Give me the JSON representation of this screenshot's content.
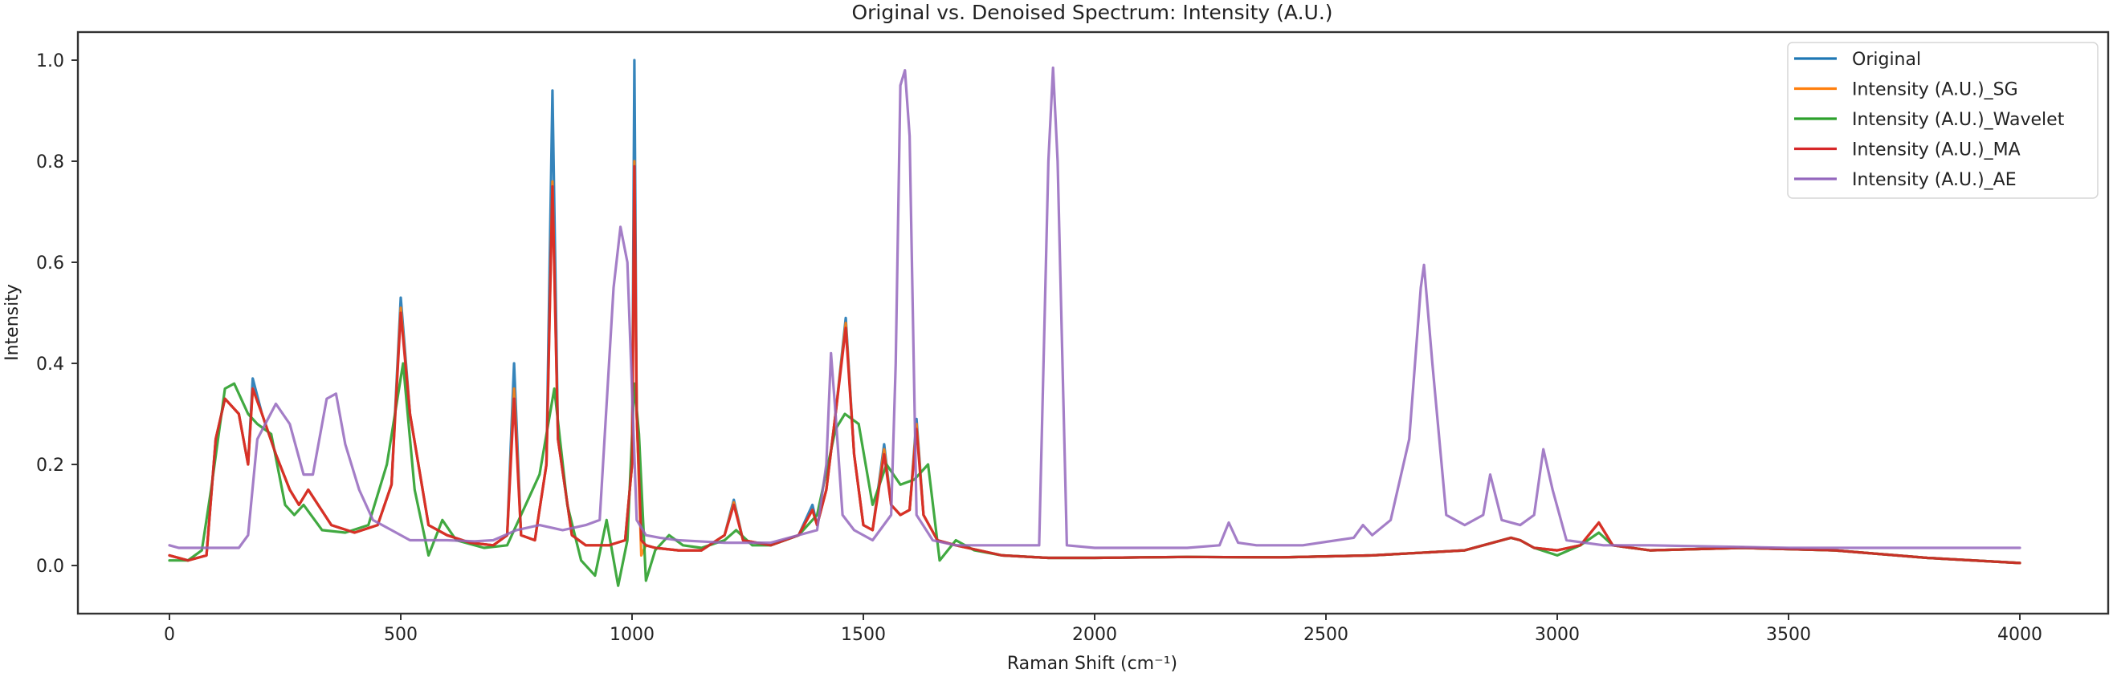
{
  "chart_data": {
    "type": "line",
    "title": "Original vs. Denoised Spectrum: Intensity (A.U.)",
    "xlabel": "Raman Shift (cm⁻¹)",
    "ylabel": "Intensity",
    "xlim": [
      -100,
      4200
    ],
    "ylim": [
      -0.1,
      1.05
    ],
    "xticks": [
      0,
      500,
      1000,
      1500,
      2000,
      2500,
      3000,
      3500,
      4000
    ],
    "xtick_labels": [
      "0",
      "500",
      "1000",
      "1500",
      "2000",
      "2500",
      "3000",
      "3500",
      "4000"
    ],
    "yticks": [
      0.0,
      0.2,
      0.4,
      0.6,
      0.8,
      1.0
    ],
    "ytick_labels": [
      "0.0",
      "0.2",
      "0.4",
      "0.6",
      "0.8",
      "1.0"
    ],
    "grid": false,
    "legend_position": "upper right",
    "series": [
      {
        "name": "Original",
        "color": "#1f77b4",
        "x": [
          0,
          40,
          80,
          100,
          120,
          150,
          170,
          180,
          200,
          230,
          260,
          280,
          300,
          350,
          400,
          450,
          480,
          500,
          520,
          560,
          600,
          650,
          700,
          730,
          745,
          760,
          790,
          815,
          828,
          840,
          870,
          900,
          950,
          985,
          1000,
          1005,
          1010,
          1020,
          1030,
          1050,
          1100,
          1150,
          1200,
          1220,
          1240,
          1300,
          1360,
          1390,
          1400,
          1420,
          1440,
          1462,
          1480,
          1500,
          1520,
          1545,
          1560,
          1580,
          1600,
          1615,
          1630,
          1660,
          1700,
          1800,
          1900,
          2000,
          2200,
          2400,
          2600,
          2800,
          2900,
          2920,
          2950,
          3000,
          3050,
          3090,
          3120,
          3200,
          3400,
          3600,
          3800,
          4000
        ],
        "y": [
          0.02,
          0.01,
          0.02,
          0.25,
          0.33,
          0.3,
          0.2,
          0.37,
          0.3,
          0.22,
          0.15,
          0.12,
          0.15,
          0.08,
          0.065,
          0.08,
          0.16,
          0.53,
          0.3,
          0.08,
          0.06,
          0.045,
          0.04,
          0.06,
          0.4,
          0.06,
          0.05,
          0.2,
          0.94,
          0.25,
          0.06,
          0.04,
          0.04,
          0.05,
          0.2,
          1.0,
          0.3,
          0.05,
          0.04,
          0.035,
          0.03,
          0.03,
          0.06,
          0.13,
          0.05,
          0.04,
          0.06,
          0.12,
          0.08,
          0.15,
          0.3,
          0.49,
          0.22,
          0.08,
          0.07,
          0.24,
          0.12,
          0.1,
          0.11,
          0.29,
          0.1,
          0.05,
          0.04,
          0.02,
          0.015,
          0.015,
          0.017,
          0.016,
          0.02,
          0.03,
          0.055,
          0.05,
          0.035,
          0.03,
          0.04,
          0.085,
          0.04,
          0.03,
          0.035,
          0.03,
          0.015,
          0.005
        ]
      },
      {
        "name": "Intensity (A.U.)_SG",
        "color": "#ff7f0e",
        "x": [
          0,
          40,
          80,
          100,
          120,
          150,
          170,
          180,
          200,
          230,
          260,
          280,
          300,
          350,
          400,
          450,
          480,
          500,
          520,
          560,
          600,
          650,
          700,
          730,
          745,
          760,
          790,
          815,
          828,
          840,
          870,
          900,
          950,
          985,
          1000,
          1005,
          1010,
          1020,
          1030,
          1050,
          1100,
          1150,
          1200,
          1220,
          1240,
          1300,
          1360,
          1390,
          1400,
          1420,
          1440,
          1462,
          1480,
          1500,
          1520,
          1545,
          1560,
          1580,
          1600,
          1615,
          1630,
          1660,
          1700,
          1800,
          1900,
          2000,
          2200,
          2400,
          2600,
          2800,
          2900,
          2920,
          2950,
          3000,
          3050,
          3090,
          3120,
          3200,
          3400,
          3600,
          3800,
          4000
        ],
        "y": [
          0.02,
          0.01,
          0.02,
          0.25,
          0.33,
          0.3,
          0.2,
          0.35,
          0.3,
          0.22,
          0.15,
          0.12,
          0.15,
          0.08,
          0.065,
          0.08,
          0.16,
          0.51,
          0.3,
          0.08,
          0.06,
          0.045,
          0.04,
          0.06,
          0.35,
          0.06,
          0.05,
          0.2,
          0.76,
          0.25,
          0.06,
          0.04,
          0.04,
          0.05,
          0.2,
          0.8,
          0.3,
          0.02,
          0.04,
          0.035,
          0.03,
          0.03,
          0.06,
          0.125,
          0.05,
          0.04,
          0.06,
          0.11,
          0.08,
          0.15,
          0.3,
          0.48,
          0.22,
          0.08,
          0.07,
          0.23,
          0.12,
          0.1,
          0.11,
          0.28,
          0.1,
          0.05,
          0.04,
          0.02,
          0.015,
          0.015,
          0.017,
          0.016,
          0.02,
          0.03,
          0.055,
          0.05,
          0.035,
          0.03,
          0.04,
          0.085,
          0.04,
          0.03,
          0.035,
          0.03,
          0.015,
          0.005
        ]
      },
      {
        "name": "Intensity (A.U.)_Wavelet",
        "color": "#2ca02c",
        "x": [
          0,
          40,
          70,
          90,
          120,
          140,
          170,
          190,
          220,
          250,
          270,
          290,
          330,
          380,
          430,
          470,
          505,
          530,
          560,
          590,
          620,
          680,
          730,
          760,
          800,
          832,
          860,
          890,
          920,
          945,
          970,
          990,
          1005,
          1015,
          1030,
          1050,
          1080,
          1110,
          1150,
          1200,
          1225,
          1260,
          1300,
          1360,
          1400,
          1440,
          1460,
          1490,
          1520,
          1550,
          1580,
          1610,
          1640,
          1665,
          1700,
          1740,
          1800,
          1900,
          2000,
          2200,
          2400,
          2600,
          2800,
          2900,
          2920,
          2950,
          3000,
          3050,
          3090,
          3120,
          3200,
          3400,
          3600,
          3800,
          4000
        ],
        "y": [
          0.01,
          0.01,
          0.03,
          0.15,
          0.35,
          0.36,
          0.3,
          0.28,
          0.26,
          0.12,
          0.1,
          0.12,
          0.07,
          0.065,
          0.08,
          0.2,
          0.4,
          0.15,
          0.02,
          0.09,
          0.05,
          0.035,
          0.04,
          0.1,
          0.18,
          0.35,
          0.12,
          0.01,
          -0.02,
          0.09,
          -0.04,
          0.05,
          0.36,
          0.26,
          -0.03,
          0.03,
          0.06,
          0.04,
          0.035,
          0.05,
          0.07,
          0.04,
          0.04,
          0.06,
          0.1,
          0.27,
          0.3,
          0.28,
          0.12,
          0.2,
          0.16,
          0.17,
          0.2,
          0.01,
          0.05,
          0.03,
          0.02,
          0.015,
          0.015,
          0.017,
          0.016,
          0.02,
          0.03,
          0.055,
          0.05,
          0.035,
          0.02,
          0.04,
          0.065,
          0.04,
          0.03,
          0.035,
          0.03,
          0.015,
          0.005
        ]
      },
      {
        "name": "Intensity (A.U.)_MA",
        "color": "#d62728",
        "x": [
          0,
          40,
          80,
          100,
          120,
          150,
          170,
          180,
          200,
          230,
          260,
          280,
          300,
          350,
          400,
          450,
          480,
          500,
          520,
          560,
          600,
          650,
          700,
          730,
          745,
          760,
          790,
          815,
          828,
          840,
          870,
          900,
          950,
          985,
          1000,
          1005,
          1010,
          1020,
          1030,
          1050,
          1100,
          1150,
          1200,
          1220,
          1240,
          1300,
          1360,
          1390,
          1400,
          1420,
          1440,
          1462,
          1480,
          1500,
          1520,
          1545,
          1560,
          1580,
          1600,
          1615,
          1630,
          1660,
          1700,
          1800,
          1900,
          2000,
          2200,
          2400,
          2600,
          2800,
          2900,
          2920,
          2950,
          3000,
          3050,
          3090,
          3120,
          3200,
          3400,
          3600,
          3800,
          4000
        ],
        "y": [
          0.02,
          0.01,
          0.02,
          0.25,
          0.33,
          0.3,
          0.2,
          0.35,
          0.3,
          0.22,
          0.15,
          0.12,
          0.15,
          0.08,
          0.065,
          0.08,
          0.16,
          0.5,
          0.3,
          0.08,
          0.06,
          0.045,
          0.04,
          0.06,
          0.33,
          0.06,
          0.05,
          0.2,
          0.75,
          0.25,
          0.06,
          0.04,
          0.04,
          0.05,
          0.2,
          0.79,
          0.3,
          0.05,
          0.04,
          0.035,
          0.03,
          0.03,
          0.06,
          0.12,
          0.05,
          0.04,
          0.06,
          0.11,
          0.08,
          0.15,
          0.3,
          0.47,
          0.22,
          0.08,
          0.07,
          0.22,
          0.12,
          0.1,
          0.11,
          0.27,
          0.1,
          0.05,
          0.04,
          0.02,
          0.015,
          0.015,
          0.017,
          0.016,
          0.02,
          0.03,
          0.055,
          0.05,
          0.035,
          0.03,
          0.04,
          0.085,
          0.04,
          0.03,
          0.035,
          0.03,
          0.015,
          0.005
        ]
      },
      {
        "name": "Intensity (A.U.)_AE",
        "color": "#9467bd",
        "x": [
          0,
          20,
          150,
          170,
          190,
          230,
          260,
          290,
          310,
          340,
          360,
          380,
          410,
          440,
          480,
          520,
          560,
          600,
          660,
          700,
          750,
          800,
          850,
          900,
          930,
          960,
          975,
          990,
          1010,
          1030,
          1060,
          1100,
          1200,
          1300,
          1400,
          1420,
          1430,
          1440,
          1455,
          1480,
          1520,
          1560,
          1570,
          1580,
          1590,
          1600,
          1615,
          1650,
          1700,
          1800,
          1880,
          1900,
          1910,
          1920,
          1940,
          2000,
          2100,
          2200,
          2270,
          2290,
          2310,
          2350,
          2450,
          2560,
          2580,
          2600,
          2640,
          2680,
          2705,
          2712,
          2730,
          2760,
          2800,
          2840,
          2855,
          2880,
          2920,
          2950,
          2970,
          2990,
          3020,
          3100,
          3200,
          3500,
          3800,
          4000
        ],
        "y": [
          0.04,
          0.035,
          0.035,
          0.06,
          0.25,
          0.32,
          0.28,
          0.18,
          0.18,
          0.33,
          0.34,
          0.24,
          0.15,
          0.09,
          0.07,
          0.05,
          0.05,
          0.05,
          0.048,
          0.05,
          0.07,
          0.08,
          0.07,
          0.08,
          0.09,
          0.55,
          0.67,
          0.6,
          0.09,
          0.06,
          0.055,
          0.05,
          0.045,
          0.045,
          0.07,
          0.2,
          0.42,
          0.3,
          0.1,
          0.07,
          0.05,
          0.1,
          0.4,
          0.95,
          0.98,
          0.85,
          0.1,
          0.05,
          0.04,
          0.04,
          0.04,
          0.8,
          0.985,
          0.8,
          0.04,
          0.035,
          0.035,
          0.035,
          0.04,
          0.085,
          0.045,
          0.04,
          0.04,
          0.055,
          0.08,
          0.06,
          0.09,
          0.25,
          0.55,
          0.595,
          0.4,
          0.1,
          0.08,
          0.1,
          0.18,
          0.09,
          0.08,
          0.1,
          0.23,
          0.15,
          0.05,
          0.04,
          0.04,
          0.035,
          0.035,
          0.035
        ]
      }
    ]
  },
  "plot": {
    "title": "Original vs. Denoised Spectrum: Intensity (A.U.)",
    "xlabel": "Raman Shift (cm⁻¹)",
    "ylabel": "Intensity",
    "legend": [
      {
        "label": "Original",
        "color": "#1f77b4"
      },
      {
        "label": "Intensity (A.U.)_SG",
        "color": "#ff7f0e"
      },
      {
        "label": "Intensity (A.U.)_Wavelet",
        "color": "#2ca02c"
      },
      {
        "label": "Intensity (A.U.)_MA",
        "color": "#d62728"
      },
      {
        "label": "Intensity (A.U.)_AE",
        "color": "#9467bd"
      }
    ]
  }
}
